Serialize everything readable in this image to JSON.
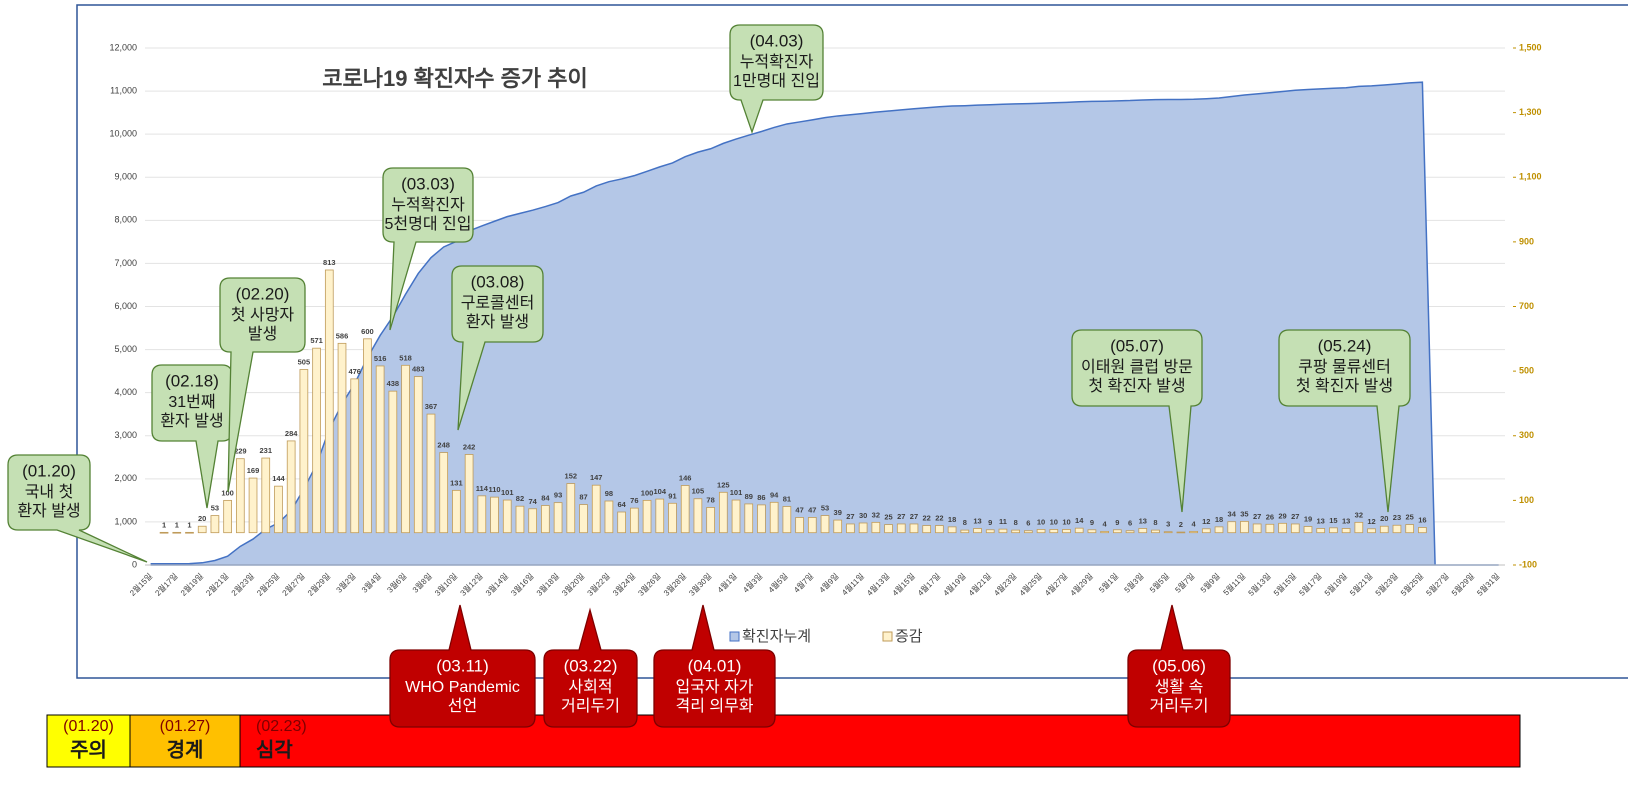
{
  "chart_data": {
    "type": "combo",
    "title": "코로나19 확진자수 증가 추이",
    "categories": [
      "2월15일",
      null,
      "2월17일",
      null,
      "2월19일",
      null,
      "2월21일",
      null,
      "2월23일",
      null,
      "2월25일",
      null,
      "2월27일",
      null,
      "2월29일",
      null,
      "3월2일",
      null,
      "3월4일",
      null,
      "3월6일",
      null,
      "3월8일",
      null,
      "3월10일",
      null,
      "3월12일",
      null,
      "3월14일",
      null,
      "3월16일",
      null,
      "3월18일",
      null,
      "3월20일",
      null,
      "3월22일",
      null,
      "3월24일",
      null,
      "3월26일",
      null,
      "3월28일",
      null,
      "3월30일",
      null,
      "4월1일",
      null,
      "4월3일",
      null,
      "4월5일",
      null,
      "4월7일",
      null,
      "4월9일",
      null,
      "4월11일",
      null,
      "4월13일",
      null,
      "4월15일",
      null,
      "4월17일",
      null,
      "4월19일",
      null,
      "4월21일",
      null,
      "4월23일",
      null,
      "4월25일",
      null,
      "4월27일",
      null,
      "4월29일",
      null,
      "5월1일",
      null,
      "5월3일",
      null,
      "5월5일",
      null,
      "5월7일",
      null,
      "5월9일",
      null,
      "5월11일",
      null,
      "5월13일",
      null,
      "5월15일",
      null,
      "5월17일",
      null,
      "5월19일",
      null,
      "5월21일",
      null,
      "5월23일",
      null,
      "5월25일",
      null,
      "5월27일",
      null,
      "5월29일",
      null,
      "5월31일"
    ],
    "series": [
      {
        "name": "확진자누계",
        "type": "area",
        "color": "#b4c7e7",
        "stroke": "#4472c4",
        "values": [
          28,
          29,
          30,
          31,
          51,
          104,
          204,
          433,
          602,
          833,
          977,
          1261,
          1766,
          2337,
          3150,
          3736,
          4212,
          4812,
          5328,
          5766,
          6284,
          6767,
          7134,
          7382,
          7513,
          7755,
          7869,
          7979,
          8086,
          8162,
          8236,
          8320,
          8413,
          8565,
          8652,
          8799,
          8897,
          8961,
          9037,
          9137,
          9241,
          9332,
          9478,
          9583,
          9661,
          9786,
          9887,
          9976,
          10062,
          10156,
          10237,
          10284,
          10331,
          10384,
          10423,
          10450,
          10480,
          10512,
          10537,
          10564,
          10591,
          10613,
          10635,
          10653,
          10661,
          10674,
          10683,
          10694,
          10702,
          10708,
          10718,
          10728,
          10738,
          10752,
          10761,
          10765,
          10774,
          10780,
          10793,
          10801,
          10804,
          10806,
          10810,
          10822,
          10840,
          10874,
          10909,
          10936,
          10962,
          10991,
          11018,
          11037,
          11050,
          11065,
          11078,
          11110,
          11122,
          11142,
          11165,
          11190,
          11206,
          0,
          0,
          0,
          0,
          0,
          0
        ]
      },
      {
        "name": "증감",
        "type": "bar",
        "axis": "y2",
        "color": "#fff2cc",
        "stroke": "#bf9b5a",
        "values": [
          null,
          1,
          1,
          1,
          20,
          53,
          100,
          229,
          169,
          231,
          144,
          284,
          505,
          571,
          813,
          586,
          476,
          600,
          516,
          438,
          518,
          483,
          367,
          248,
          131,
          242,
          114,
          110,
          101,
          82,
          74,
          84,
          93,
          152,
          87,
          147,
          98,
          64,
          76,
          100,
          104,
          91,
          146,
          105,
          78,
          125,
          101,
          89,
          86,
          94,
          81,
          47,
          47,
          53,
          39,
          27,
          30,
          32,
          25,
          27,
          27,
          22,
          22,
          18,
          8,
          13,
          9,
          11,
          8,
          6,
          10,
          10,
          10,
          14,
          9,
          4,
          9,
          6,
          13,
          8,
          3,
          2,
          4,
          12,
          18,
          34,
          35,
          27,
          26,
          29,
          27,
          19,
          13,
          15,
          13,
          32,
          12,
          20,
          23,
          25,
          16,
          null,
          null,
          null,
          null,
          null,
          null
        ]
      }
    ],
    "ylim": [
      0,
      12000
    ],
    "yticks": [
      0,
      {
        "value": 1000,
        "label": "1,000"
      },
      {
        "value": 2000,
        "label": "2,000"
      },
      {
        "value": 3000,
        "label": "3,000"
      },
      {
        "value": 4000,
        "label": "4,000"
      },
      {
        "value": 5000,
        "label": "5,000"
      },
      {
        "value": 6000,
        "label": "6,000"
      },
      {
        "value": 7000,
        "label": "7,000"
      },
      {
        "value": 8000,
        "label": "8,000"
      },
      {
        "value": 9000,
        "label": "9,000"
      },
      {
        "value": 10000,
        "label": "10,000"
      },
      {
        "value": 11000,
        "label": "11,000"
      },
      {
        "value": 12000,
        "label": "12,000"
      }
    ],
    "y2lim": [
      -100,
      1500
    ],
    "y2ticks": [
      -100,
      100,
      300,
      500,
      700,
      900,
      {
        "value": 1100,
        "label": "1,100"
      },
      {
        "value": 1300,
        "label": "1,300"
      },
      {
        "value": 1500,
        "label": "1,500"
      }
    ],
    "grid": true,
    "legend": "bottom",
    "annotations": [
      {
        "date": "(01.20)",
        "lines": [
          "국내 첫",
          "환자 발생"
        ]
      },
      {
        "date": "(02.18)",
        "lines": [
          "31번째",
          "환자 발생"
        ]
      },
      {
        "date": "(02.20)",
        "lines": [
          "첫 사망자",
          "발생"
        ]
      },
      {
        "date": "(03.03)",
        "lines": [
          "누적확진자",
          "5천명대 진입"
        ]
      },
      {
        "date": "(03.08)",
        "lines": [
          "구로콜센터",
          "환자 발생"
        ]
      },
      {
        "date": "(04.03)",
        "lines": [
          "누적확진자",
          "1만명대 진입"
        ]
      },
      {
        "date": "(05.07)",
        "lines": [
          "이태원 클럽 방문",
          "첫 확진자 발생"
        ]
      },
      {
        "date": "(05.24)",
        "lines": [
          "쿠팡 물류센터",
          "첫 확진자 발생"
        ]
      }
    ],
    "policy_annotations": [
      {
        "date": "(03.11)",
        "lines": [
          "WHO Pandemic",
          "선언"
        ]
      },
      {
        "date": "(03.22)",
        "lines": [
          "사회적",
          "거리두기"
        ]
      },
      {
        "date": "(04.01)",
        "lines": [
          "입국자 자가",
          "격리 의무화"
        ]
      },
      {
        "date": "(05.06)",
        "lines": [
          "생활 속",
          "거리두기"
        ]
      }
    ],
    "alert_levels": [
      {
        "date": "(01.20)",
        "label": "주의",
        "color": "#ffff00"
      },
      {
        "date": "(01.27)",
        "label": "경계",
        "color": "#ffc000"
      },
      {
        "date": "(02.23)",
        "label": "심각",
        "color": "#ff0000"
      }
    ]
  }
}
